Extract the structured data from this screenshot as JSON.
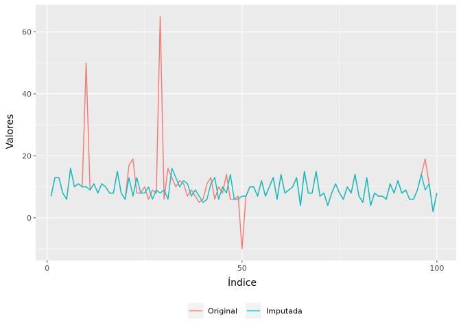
{
  "chart_data": {
    "type": "line",
    "xlabel": "Índice",
    "ylabel": "Valores",
    "xlim": [
      -2.95,
      104.95
    ],
    "ylim": [
      -13.75,
      68.75
    ],
    "x_ticks": [
      0,
      50,
      100
    ],
    "x_minor_ticks": [
      25,
      75
    ],
    "y_ticks": [
      0,
      20,
      40,
      60
    ],
    "y_minor_ticks": [
      -10,
      10,
      30,
      50
    ],
    "x_tick_labels": [
      "0",
      "50",
      "100"
    ],
    "y_tick_labels": [
      "0",
      "20",
      "40",
      "60"
    ],
    "grid": true,
    "legend_position": "bottom",
    "colors": {
      "panel_bg": "#EBEBEB",
      "grid": "#FFFFFF",
      "original": "#F8766D",
      "imputada": "#00BFC4"
    },
    "x": [
      1,
      2,
      3,
      4,
      5,
      6,
      7,
      8,
      9,
      10,
      11,
      12,
      13,
      14,
      15,
      16,
      17,
      18,
      19,
      20,
      21,
      22,
      23,
      24,
      25,
      26,
      27,
      28,
      29,
      30,
      31,
      32,
      33,
      34,
      35,
      36,
      37,
      38,
      39,
      40,
      41,
      42,
      43,
      44,
      45,
      46,
      47,
      48,
      49,
      50,
      51,
      52,
      53,
      54,
      55,
      56,
      57,
      58,
      59,
      60,
      61,
      62,
      63,
      64,
      65,
      66,
      67,
      68,
      69,
      70,
      71,
      72,
      73,
      74,
      75,
      76,
      77,
      78,
      79,
      80,
      81,
      82,
      83,
      84,
      85,
      86,
      87,
      88,
      89,
      90,
      91,
      92,
      93,
      94,
      95,
      96,
      97,
      98,
      99,
      100
    ],
    "series": [
      {
        "name": "Original",
        "color": "#F8766D",
        "values": [
          7,
          13,
          13,
          8,
          6,
          16,
          10,
          11,
          10,
          50,
          9,
          11,
          8,
          11,
          10,
          8,
          8,
          15,
          8,
          6,
          17,
          19,
          8,
          8,
          10,
          6,
          9,
          8,
          65,
          6,
          16,
          13,
          10,
          12,
          11,
          7,
          9,
          7,
          5,
          6,
          11,
          13,
          6,
          10,
          8,
          14,
          6,
          6,
          7,
          -10,
          7,
          10,
          10,
          7,
          12,
          7,
          10,
          13,
          6,
          14,
          8,
          9,
          10,
          13,
          4,
          15,
          8,
          8,
          15,
          7,
          8,
          4,
          8,
          11,
          8,
          6,
          10,
          8,
          14,
          7,
          5,
          13,
          4,
          8,
          7,
          7,
          6,
          11,
          8,
          12,
          8,
          9,
          6,
          6,
          9,
          14,
          19,
          11,
          2,
          8
        ]
      },
      {
        "name": "Imputada",
        "color": "#00BFC4",
        "values": [
          7,
          13,
          13,
          8,
          6,
          16,
          10,
          11,
          10,
          10,
          9,
          11,
          8,
          11,
          10,
          8,
          8,
          15,
          8,
          6,
          13,
          7,
          13,
          8,
          8,
          10,
          6,
          9,
          8,
          9,
          6,
          16,
          13,
          10,
          12,
          11,
          7,
          9,
          7,
          5,
          6,
          11,
          13,
          6,
          10,
          8,
          14,
          6,
          6,
          7,
          7,
          10,
          10,
          7,
          12,
          7,
          10,
          13,
          6,
          14,
          8,
          9,
          10,
          13,
          4,
          15,
          8,
          8,
          15,
          7,
          8,
          4,
          8,
          11,
          8,
          6,
          10,
          8,
          14,
          7,
          5,
          13,
          4,
          8,
          7,
          7,
          6,
          11,
          8,
          12,
          8,
          9,
          6,
          6,
          9,
          14,
          9,
          11,
          2,
          8
        ]
      }
    ]
  }
}
